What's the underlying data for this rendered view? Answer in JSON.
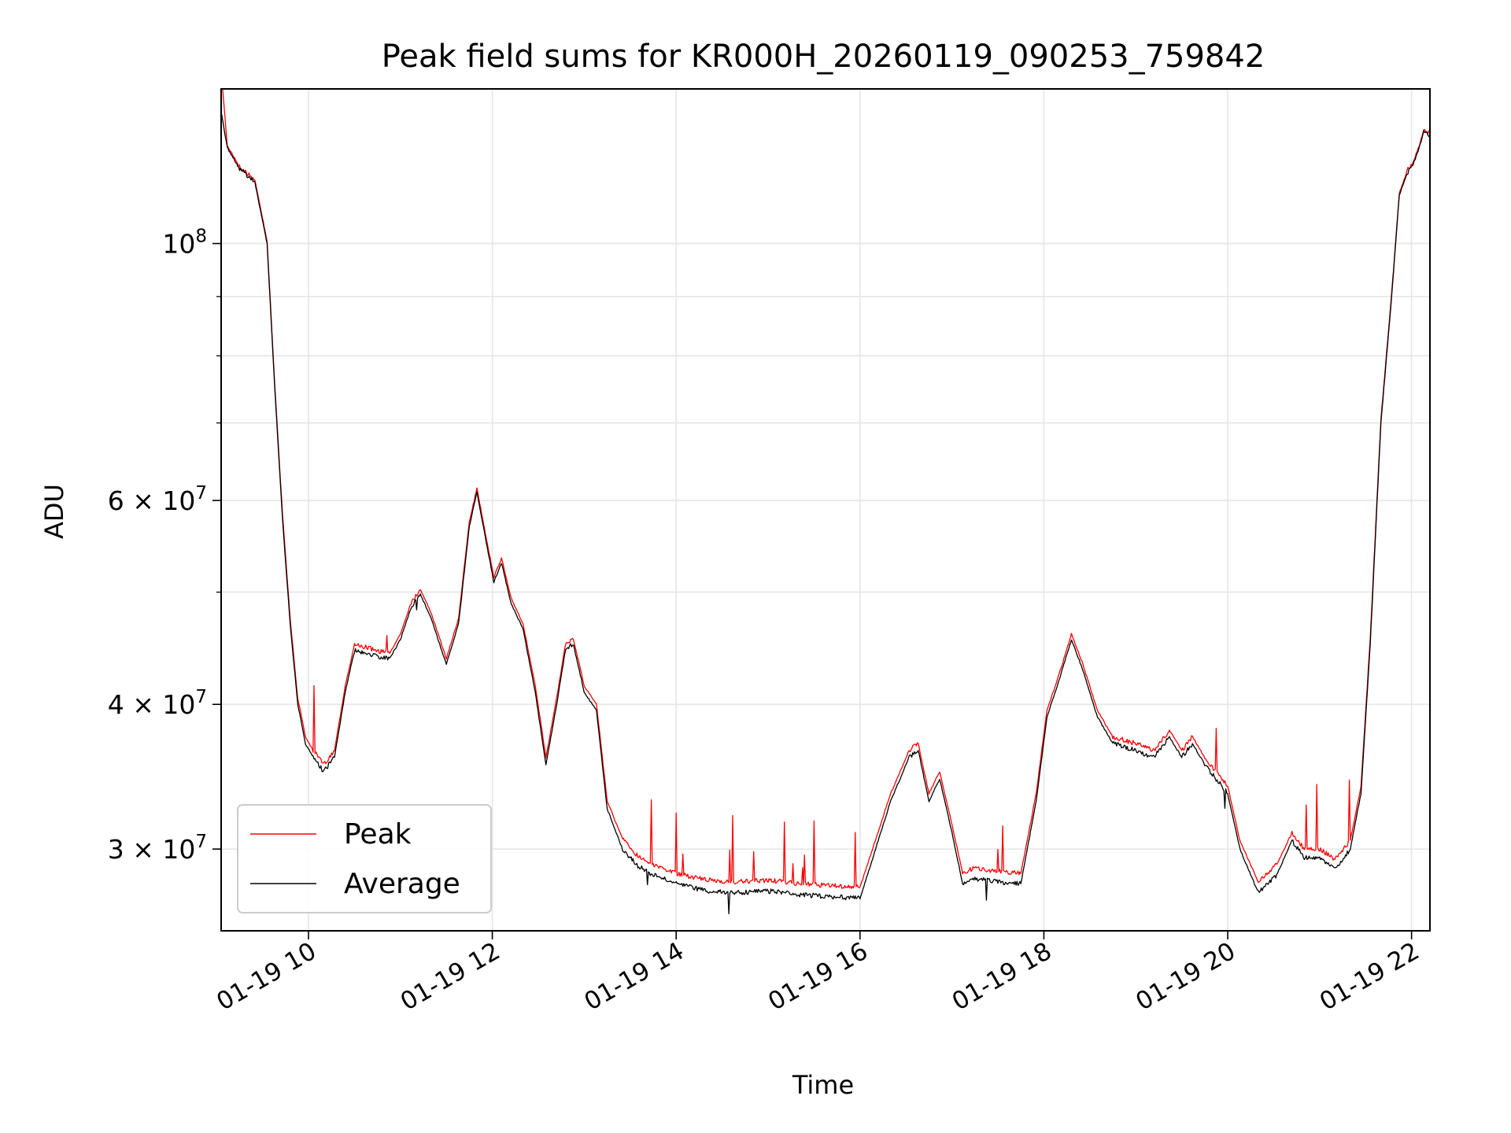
{
  "chart_data": {
    "type": "line",
    "title": "Peak field sums for KR000H_20260119_090253_759842",
    "xlabel": "Time",
    "ylabel": "ADU",
    "yscale": "log",
    "grid": true,
    "legend_position": "lower-left",
    "xlim": [
      "2026-01-19 09:03",
      "2026-01-19 22:12"
    ],
    "ylim": [
      25500000,
      136000000
    ],
    "x_ticks": [
      {
        "at": "2026-01-19 10:00",
        "label": "01-19 10"
      },
      {
        "at": "2026-01-19 12:00",
        "label": "01-19 12"
      },
      {
        "at": "2026-01-19 14:00",
        "label": "01-19 14"
      },
      {
        "at": "2026-01-19 16:00",
        "label": "01-19 16"
      },
      {
        "at": "2026-01-19 18:00",
        "label": "01-19 18"
      },
      {
        "at": "2026-01-19 20:00",
        "label": "01-19 20"
      },
      {
        "at": "2026-01-19 22:00",
        "label": "01-19 22"
      }
    ],
    "y_ticks": [
      {
        "at": 30000000,
        "base": "3 × 10",
        "exp": "7"
      },
      {
        "at": 40000000,
        "base": "4 × 10",
        "exp": "7"
      },
      {
        "at": 60000000,
        "base": "6 × 10",
        "exp": "7"
      },
      {
        "at": 100000000,
        "base": "10",
        "exp": "8"
      }
    ],
    "y_minor_ticks": [
      50000000,
      70000000,
      80000000,
      90000000
    ],
    "colors": {
      "Peak": "#ff0000",
      "Average": "#000000"
    },
    "series": [
      {
        "name": "Average",
        "x": [
          "2026-01-19 09:03",
          "2026-01-19 09:07",
          "2026-01-19 09:15",
          "2026-01-19 09:25",
          "2026-01-19 09:33",
          "2026-01-19 09:38",
          "2026-01-19 09:43",
          "2026-01-19 09:48",
          "2026-01-19 09:53",
          "2026-01-19 09:58",
          "2026-01-19 10:03",
          "2026-01-19 10:10",
          "2026-01-19 10:17",
          "2026-01-19 10:24",
          "2026-01-19 10:30",
          "2026-01-19 10:38",
          "2026-01-19 10:45",
          "2026-01-19 10:53",
          "2026-01-19 11:00",
          "2026-01-19 11:07",
          "2026-01-19 11:13",
          "2026-01-19 11:20",
          "2026-01-19 11:30",
          "2026-01-19 11:38",
          "2026-01-19 11:45",
          "2026-01-19 11:50",
          "2026-01-19 11:53",
          "2026-01-19 11:58",
          "2026-01-19 12:01",
          "2026-01-19 12:06",
          "2026-01-19 12:12",
          "2026-01-19 12:20",
          "2026-01-19 12:28",
          "2026-01-19 12:35",
          "2026-01-19 12:42",
          "2026-01-19 12:48",
          "2026-01-19 12:53",
          "2026-01-19 13:00",
          "2026-01-19 13:08",
          "2026-01-19 13:15",
          "2026-01-19 13:25",
          "2026-01-19 13:35",
          "2026-01-19 13:45",
          "2026-01-19 14:00",
          "2026-01-19 14:20",
          "2026-01-19 14:40",
          "2026-01-19 15:00",
          "2026-01-19 15:20",
          "2026-01-19 15:40",
          "2026-01-19 16:00",
          "2026-01-19 16:20",
          "2026-01-19 16:32",
          "2026-01-19 16:38",
          "2026-01-19 16:45",
          "2026-01-19 16:52",
          "2026-01-19 17:00",
          "2026-01-19 17:07",
          "2026-01-19 17:15",
          "2026-01-19 17:30",
          "2026-01-19 17:45",
          "2026-01-19 17:55",
          "2026-01-19 18:02",
          "2026-01-19 18:10",
          "2026-01-19 18:18",
          "2026-01-19 18:25",
          "2026-01-19 18:35",
          "2026-01-19 18:45",
          "2026-01-19 19:00",
          "2026-01-19 19:12",
          "2026-01-19 19:22",
          "2026-01-19 19:30",
          "2026-01-19 19:37",
          "2026-01-19 19:45",
          "2026-01-19 20:00",
          "2026-01-19 20:08",
          "2026-01-19 20:20",
          "2026-01-19 20:32",
          "2026-01-19 20:42",
          "2026-01-19 20:50",
          "2026-01-19 21:00",
          "2026-01-19 21:10",
          "2026-01-19 21:20",
          "2026-01-19 21:27",
          "2026-01-19 21:33",
          "2026-01-19 21:40",
          "2026-01-19 21:47",
          "2026-01-19 21:52",
          "2026-01-19 21:57",
          "2026-01-19 22:01",
          "2026-01-19 22:05",
          "2026-01-19 22:08",
          "2026-01-19 22:12"
        ],
        "values": [
          130000000,
          121000000,
          116000000,
          113000000,
          100000000,
          75000000,
          58000000,
          47000000,
          40000000,
          37000000,
          36000000,
          35000000,
          36000000,
          41000000,
          44500000,
          44300000,
          44000000,
          43800000,
          45500000,
          48500000,
          49800000,
          47500000,
          43300000,
          47000000,
          57000000,
          61000000,
          58000000,
          53500000,
          51000000,
          53000000,
          49000000,
          46500000,
          41000000,
          35500000,
          40000000,
          44800000,
          45000000,
          41000000,
          39500000,
          32500000,
          30000000,
          29000000,
          28500000,
          28000000,
          27600000,
          27500000,
          27600000,
          27400000,
          27300000,
          27200000,
          33000000,
          36000000,
          36500000,
          33000000,
          34500000,
          31000000,
          28000000,
          28300000,
          28100000,
          28000000,
          33000000,
          39000000,
          42000000,
          45500000,
          43000000,
          39000000,
          37000000,
          36500000,
          36000000,
          37500000,
          36000000,
          37000000,
          35500000,
          33500000,
          30000000,
          27500000,
          28500000,
          30500000,
          29500000,
          29500000,
          28800000,
          30000000,
          33500000,
          45000000,
          70000000,
          90000000,
          110000000,
          115000000,
          117000000,
          121000000,
          125000000,
          124000000
        ]
      },
      {
        "name": "Peak",
        "x": [
          "2026-01-19 09:03",
          "2026-01-19 09:04",
          "2026-01-19 09:07",
          "2026-01-19 09:15",
          "2026-01-19 09:25",
          "2026-01-19 09:33",
          "2026-01-19 09:38",
          "2026-01-19 09:43",
          "2026-01-19 09:48",
          "2026-01-19 09:53",
          "2026-01-19 09:58",
          "2026-01-19 10:03",
          "2026-01-19 10:10",
          "2026-01-19 10:17",
          "2026-01-19 10:24",
          "2026-01-19 10:30",
          "2026-01-19 10:38",
          "2026-01-19 10:45",
          "2026-01-19 10:53",
          "2026-01-19 11:00",
          "2026-01-19 11:07",
          "2026-01-19 11:13",
          "2026-01-19 11:20",
          "2026-01-19 11:30",
          "2026-01-19 11:38",
          "2026-01-19 11:45",
          "2026-01-19 11:50",
          "2026-01-19 11:53",
          "2026-01-19 11:58",
          "2026-01-19 12:01",
          "2026-01-19 12:06",
          "2026-01-19 12:12",
          "2026-01-19 12:20",
          "2026-01-19 12:28",
          "2026-01-19 12:35",
          "2026-01-19 12:42",
          "2026-01-19 12:48",
          "2026-01-19 12:53",
          "2026-01-19 13:00",
          "2026-01-19 13:08",
          "2026-01-19 13:15",
          "2026-01-19 13:25",
          "2026-01-19 13:35",
          "2026-01-19 13:45",
          "2026-01-19 14:00",
          "2026-01-19 14:20",
          "2026-01-19 14:40",
          "2026-01-19 15:00",
          "2026-01-19 15:20",
          "2026-01-19 15:40",
          "2026-01-19 16:00",
          "2026-01-19 16:20",
          "2026-01-19 16:32",
          "2026-01-19 16:38",
          "2026-01-19 16:45",
          "2026-01-19 16:52",
          "2026-01-19 17:00",
          "2026-01-19 17:07",
          "2026-01-19 17:15",
          "2026-01-19 17:30",
          "2026-01-19 17:45",
          "2026-01-19 17:55",
          "2026-01-19 18:02",
          "2026-01-19 18:10",
          "2026-01-19 18:18",
          "2026-01-19 18:25",
          "2026-01-19 18:35",
          "2026-01-19 18:45",
          "2026-01-19 19:00",
          "2026-01-19 19:12",
          "2026-01-19 19:22",
          "2026-01-19 19:30",
          "2026-01-19 19:37",
          "2026-01-19 19:45",
          "2026-01-19 20:00",
          "2026-01-19 20:08",
          "2026-01-19 20:20",
          "2026-01-19 20:32",
          "2026-01-19 20:42",
          "2026-01-19 20:50",
          "2026-01-19 21:00",
          "2026-01-19 21:10",
          "2026-01-19 21:20",
          "2026-01-19 21:27",
          "2026-01-19 21:33",
          "2026-01-19 21:40",
          "2026-01-19 21:47",
          "2026-01-19 21:52",
          "2026-01-19 21:57",
          "2026-01-19 22:01",
          "2026-01-19 22:05",
          "2026-01-19 22:08",
          "2026-01-19 22:12"
        ],
        "values": [
          136000000,
          136000000,
          121500000,
          116500000,
          113500000,
          100500000,
          75500000,
          58500000,
          47500000,
          40500000,
          37500000,
          36500000,
          35500000,
          36500000,
          41500000,
          45000000,
          44800000,
          44500000,
          44300000,
          46000000,
          49000000,
          50300000,
          48000000,
          43800000,
          47500000,
          57500000,
          61500000,
          58500000,
          54000000,
          51500000,
          53500000,
          49500000,
          47000000,
          41500000,
          36000000,
          40500000,
          45300000,
          45500000,
          41500000,
          40000000,
          33000000,
          30600000,
          29600000,
          29100000,
          28600000,
          28200000,
          28100000,
          28200000,
          28000000,
          27900000,
          27800000,
          33500000,
          36500000,
          37000000,
          33500000,
          35000000,
          31500000,
          28600000,
          28900000,
          28700000,
          28600000,
          33500000,
          39500000,
          42500000,
          46000000,
          43500000,
          39500000,
          37500000,
          37000000,
          36500000,
          38000000,
          36500000,
          37500000,
          36000000,
          34000000,
          30500000,
          28100000,
          29100000,
          31000000,
          30000000,
          30000000,
          29400000,
          30500000,
          34000000,
          45500000,
          70500000,
          90500000,
          110500000,
          115500000,
          117500000,
          121500000,
          125500000,
          124500000
        ]
      }
    ]
  },
  "legend": {
    "items": [
      {
        "name": "Peak",
        "color": "#ff0000"
      },
      {
        "name": "Average",
        "color": "#000000"
      }
    ]
  }
}
